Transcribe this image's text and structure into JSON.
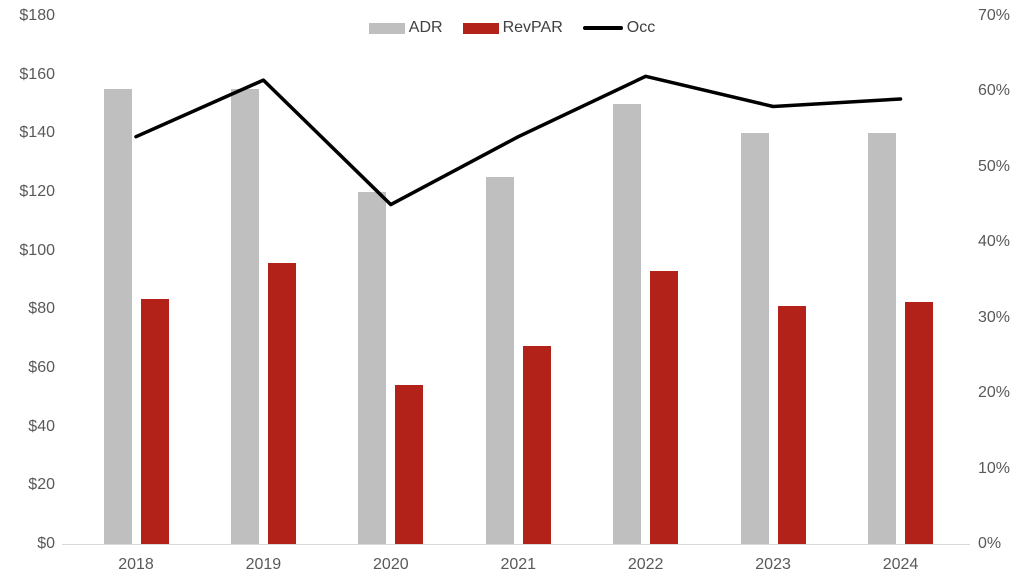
{
  "chart_data": {
    "type": "combo-bar-line",
    "title": "",
    "categories": [
      "2018",
      "2019",
      "2020",
      "2021",
      "2022",
      "2023",
      "2024"
    ],
    "series": [
      {
        "name": "ADR",
        "type": "bar",
        "axis": "left",
        "color": "#bfbfbf",
        "values": [
          155,
          155,
          120,
          125,
          150,
          140,
          140
        ]
      },
      {
        "name": "RevPAR",
        "type": "bar",
        "axis": "left",
        "color": "#b22218",
        "values": [
          83.5,
          95.5,
          54,
          67.5,
          93,
          81,
          82.5
        ]
      },
      {
        "name": "Occ",
        "type": "line",
        "axis": "right",
        "color": "#000000",
        "values": [
          54,
          61.5,
          45,
          54,
          62,
          58,
          59
        ]
      }
    ],
    "left_axis": {
      "min": 0,
      "max": 180,
      "step": 20,
      "format": "dollar",
      "tick_labels": [
        "$0",
        "$20",
        "$40",
        "$60",
        "$80",
        "$100",
        "$120",
        "$140",
        "$160",
        "$180"
      ]
    },
    "right_axis": {
      "min": 0,
      "max": 70,
      "step": 10,
      "format": "percent",
      "tick_labels": [
        "0%",
        "10%",
        "20%",
        "30%",
        "40%",
        "50%",
        "60%",
        "70%"
      ]
    },
    "legend": {
      "position": "top",
      "items": [
        "ADR",
        "RevPAR",
        "Occ"
      ]
    },
    "grid": false,
    "background_color": "#ffffff",
    "axis_line_color": "#d9d9d9",
    "tick_label_color": "#595959"
  }
}
